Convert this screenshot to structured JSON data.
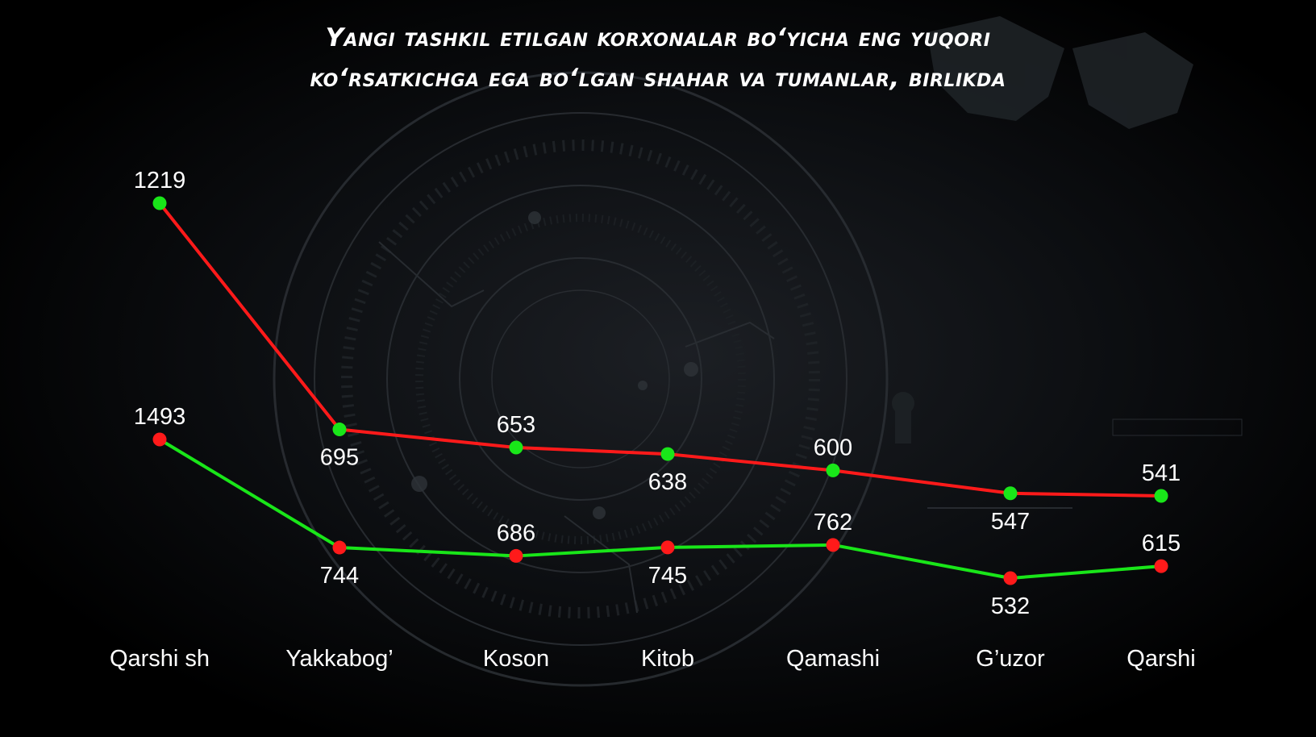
{
  "chart_data": {
    "type": "line",
    "title": "Yangi tashkil etilgan korxonalar bo‘yicha eng yuqori ko‘rsatkichga ega bo‘lgan shahar va tumanlar, birlikda",
    "title_lines": [
      "Yangi tashkil etilgan korxonalar bo‘yicha eng yuqori",
      "ko‘rsatkichga ega bo‘lgan shahar va tumanlar, birlikda"
    ],
    "categories": [
      "Qarshi sh",
      "Yakkabog’",
      "Koson",
      "Kitob",
      "Qamashi",
      "G’uzor",
      "Qarshi"
    ],
    "series": [
      {
        "values": [
          1219,
          695,
          653,
          638,
          600,
          547,
          541
        ],
        "line_color": "#ff1a1a",
        "marker_color": "#19e619"
      },
      {
        "values": [
          1493,
          744,
          686,
          745,
          762,
          532,
          615
        ],
        "line_color": "#19e619",
        "marker_color": "#ff1a1a"
      }
    ],
    "xlabel": "",
    "ylabel": "",
    "grid": false,
    "legend": "none"
  }
}
